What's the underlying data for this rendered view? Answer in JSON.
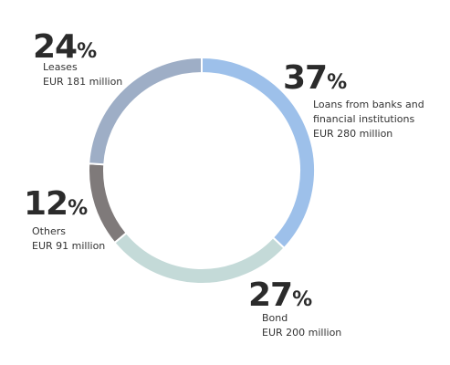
{
  "chart_data": {
    "type": "pie",
    "donut": true,
    "categories": [
      "Loans from banks and financial institutions",
      "Bond",
      "Others",
      "Leases"
    ],
    "values": [
      37,
      27,
      12,
      24
    ],
    "value_labels": [
      "37%",
      "27%",
      "12%",
      "24%"
    ],
    "amounts": [
      "EUR 280 million",
      "EUR 200 million",
      "EUR 91 million",
      "EUR 181 million"
    ],
    "colors": [
      "#9dc0ea",
      "#c4dad8",
      "#7f7a7a",
      "#9eaec6"
    ]
  }
}
